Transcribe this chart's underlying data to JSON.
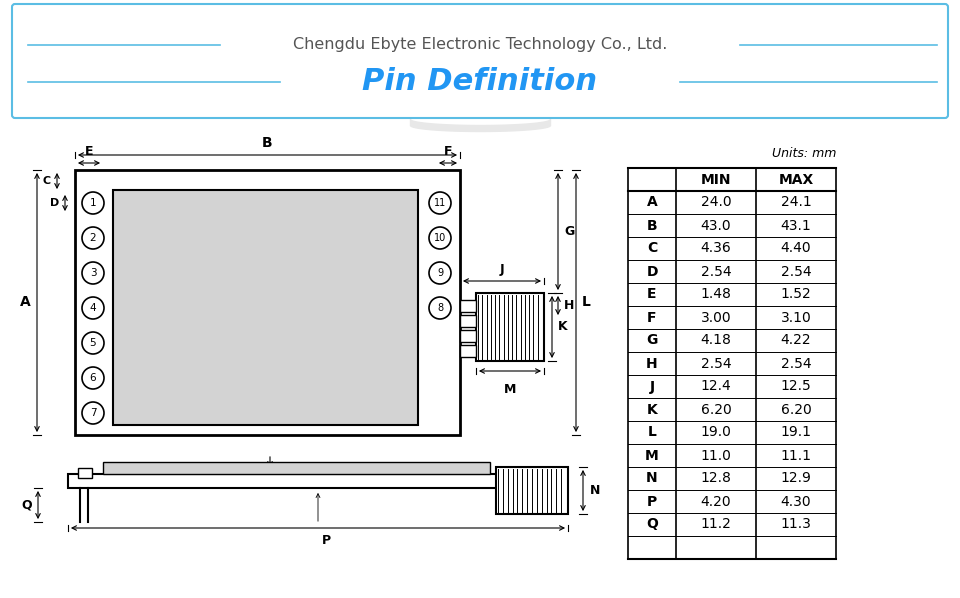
{
  "title_company": "Chengdu Ebyte Electronic Technology Co., Ltd.",
  "title_main": "Pin Definition",
  "company_color": "#555555",
  "title_color": "#2196F3",
  "bg_color": "#ffffff",
  "table_data": {
    "headers": [
      "",
      "MIN",
      "MAX"
    ],
    "rows": [
      [
        "A",
        "24.0",
        "24.1"
      ],
      [
        "B",
        "43.0",
        "43.1"
      ],
      [
        "C",
        "4.36",
        "4.40"
      ],
      [
        "D",
        "2.54",
        "2.54"
      ],
      [
        "E",
        "1.48",
        "1.52"
      ],
      [
        "F",
        "3.00",
        "3.10"
      ],
      [
        "G",
        "4.18",
        "4.22"
      ],
      [
        "H",
        "2.54",
        "2.54"
      ],
      [
        "J",
        "12.4",
        "12.5"
      ],
      [
        "K",
        "6.20",
        "6.20"
      ],
      [
        "L",
        "19.0",
        "19.1"
      ],
      [
        "M",
        "11.0",
        "11.1"
      ],
      [
        "N",
        "12.8",
        "12.9"
      ],
      [
        "P",
        "4.20",
        "4.30"
      ],
      [
        "Q",
        "11.2",
        "11.3"
      ]
    ]
  }
}
